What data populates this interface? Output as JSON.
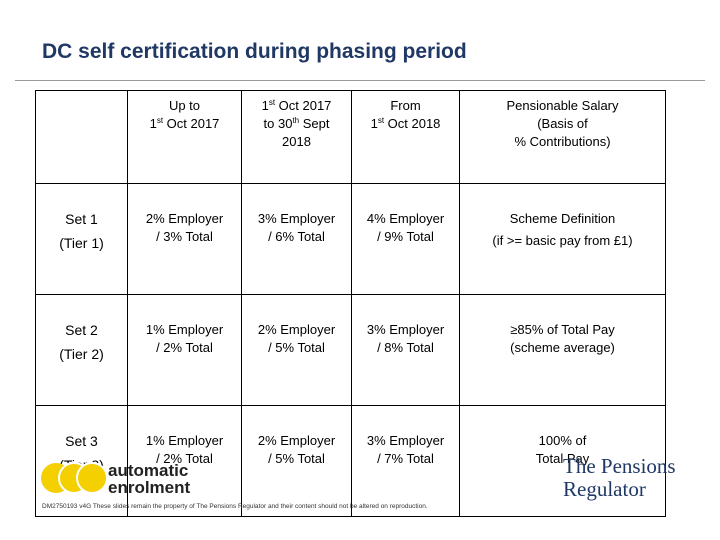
{
  "title": "DC self certification during phasing period",
  "table": {
    "headers": [
      {
        "line1": "Up to",
        "line2_sup_prefix": "1",
        "line2_sup": "st",
        "line2_rest": " Oct 2017"
      },
      {
        "line1_num": "1",
        "line1_sup": "st",
        "line1_rest": " Oct 2017",
        "line2_prefix": "to 30",
        "line2_sup": "th",
        "line2_rest": " Sept",
        "line3": "2018"
      },
      {
        "line1": "From",
        "line2_num": "1",
        "line2_sup": "st",
        "line2_rest": " Oct 2018"
      },
      {
        "line1": "Pensionable Salary",
        "line2": "(Basis of",
        "line3": "% Contributions)"
      }
    ],
    "rows": [
      {
        "set": "Set 1",
        "tier": "(Tier 1)",
        "cells": [
          {
            "l1": "2% Employer",
            "l2": "/ 3% Total"
          },
          {
            "l1": "3% Employer",
            "l2": "/ 6% Total"
          },
          {
            "l1": "4% Employer",
            "l2": "/ 9% Total"
          },
          {
            "l1": "Scheme Definition",
            "l2": "(if >= basic pay from £1)"
          }
        ]
      },
      {
        "set": "Set 2",
        "tier": "(Tier 2)",
        "cells": [
          {
            "l1": "1% Employer",
            "l2": "/ 2% Total"
          },
          {
            "l1": "2% Employer",
            "l2": "/ 5% Total"
          },
          {
            "l1": "3% Employer",
            "l2": "/ 8% Total"
          },
          {
            "l1": "≥85% of Total Pay",
            "l2": "(scheme average)"
          }
        ]
      },
      {
        "set": "Set 3",
        "tier": "(Tier 3)",
        "cells": [
          {
            "l1": "1% Employer",
            "l2": "/ 2% Total"
          },
          {
            "l1": "2% Employer",
            "l2": "/ 5% Total"
          },
          {
            "l1": "3% Employer",
            "l2": "/ 7% Total"
          },
          {
            "l1": "100% of",
            "l2": "Total Pay"
          }
        ]
      }
    ]
  },
  "logos": {
    "ae_line1": "automatic",
    "ae_line2": "enrolment",
    "tpr_line1": "The Pensions",
    "tpr_line2": "Regulator"
  },
  "footer": "DM2750193 v4G These slides remain the property of The Pensions Regulator and their content should not be altered on reproduction.",
  "colors": {
    "title": "#1f3864",
    "ae_yellow": "#f5d000",
    "tpr_navy": "#1f3864"
  }
}
